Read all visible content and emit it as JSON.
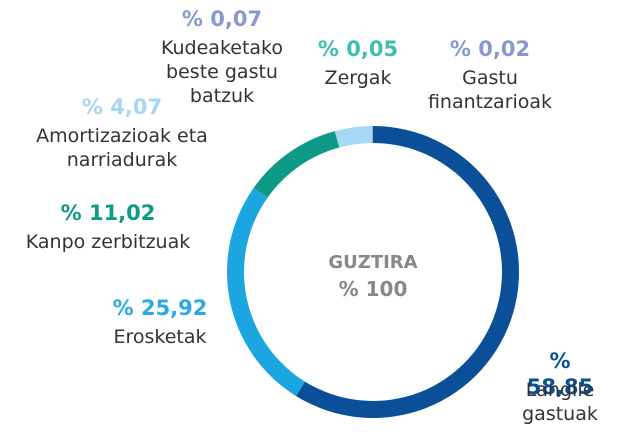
{
  "chart_data": {
    "type": "donut",
    "categories": [
      "Langile\ngastuak",
      "Erosketak",
      "Kanpo zerbitzuak",
      "Amortizazioak eta\nnarriadurak",
      "Kudeaketako\nbeste gastu\nbatzuk",
      "Zergak",
      "Gastu\nfinantzarioak"
    ],
    "values": [
      58.85,
      25.92,
      11.02,
      4.07,
      0.07,
      0.05,
      0.02
    ],
    "value_labels": [
      "% 58,85",
      "% 25,92",
      "% 11,02",
      "% 4,07",
      "% 0,07",
      "% 0,05",
      "% 0,02"
    ],
    "colors": [
      "#0b4f99",
      "#1ba6e1",
      "#0e9a86",
      "#a6d7f4",
      "#8a9bd0",
      "#3fc0ae",
      "#8a9bd0"
    ],
    "label_colors": [
      "#0b4f99",
      "#2aaae2",
      "#0e9a84",
      "#a6d6f3",
      "#8898d0",
      "#3dbfad",
      "#8898d0"
    ],
    "center_title": "GUZTIRA",
    "center_value": "% 100"
  }
}
